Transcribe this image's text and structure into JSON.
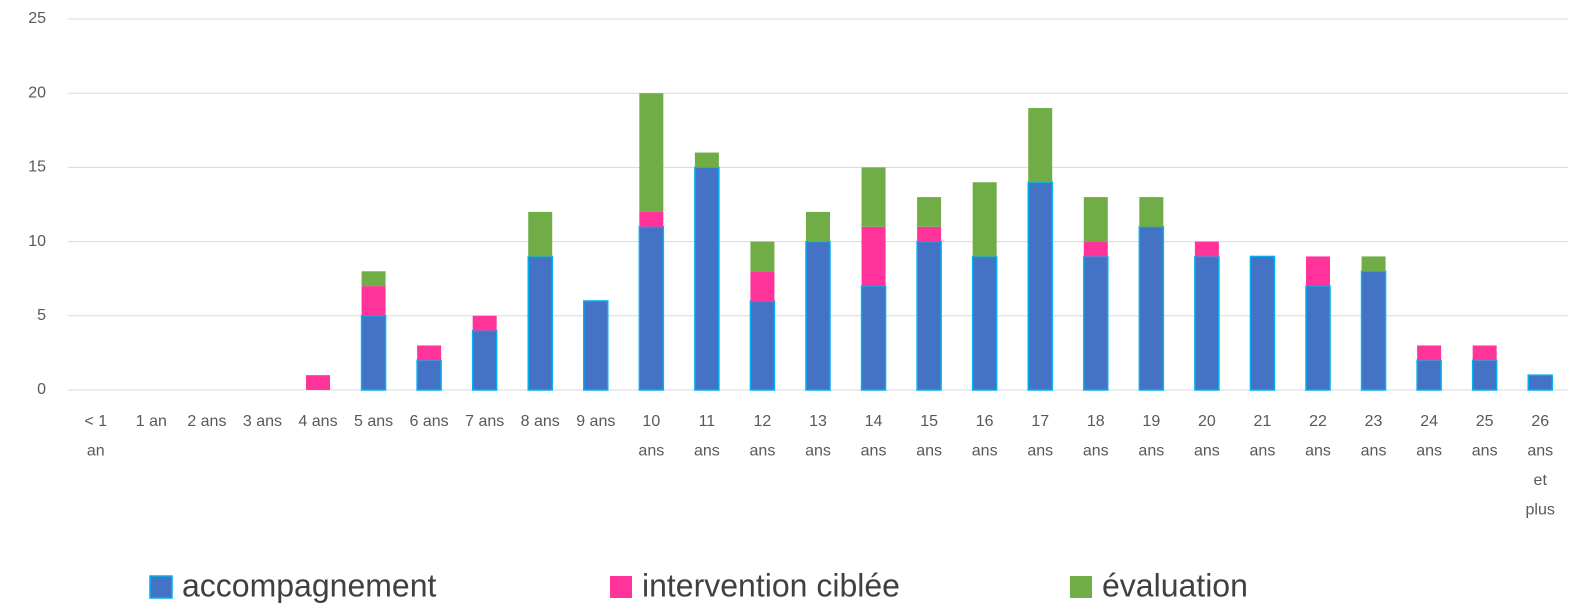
{
  "chart_data": {
    "type": "stacked_bar",
    "categories": [
      "< 1 an",
      "1 an",
      "2 ans",
      "3 ans",
      "4 ans",
      "5 ans",
      "6 ans",
      "7 ans",
      "8 ans",
      "9 ans",
      "10 ans",
      "11 ans",
      "12 ans",
      "13 ans",
      "14 ans",
      "15 ans",
      "16 ans",
      "17 ans",
      "18 ans",
      "19 ans",
      "20 ans",
      "21 ans",
      "22 ans",
      "23 ans",
      "24 ans",
      "25 ans",
      "26 ans et plus"
    ],
    "series": [
      {
        "name": "accompagnement",
        "color": "#4472c4",
        "values": [
          0,
          0,
          0,
          0,
          0,
          5,
          2,
          4,
          9,
          6,
          11,
          15,
          6,
          10,
          7,
          10,
          9,
          14,
          9,
          11,
          9,
          9,
          7,
          8,
          2,
          2,
          1
        ]
      },
      {
        "name": "intervention ciblée",
        "color": "#ff3399",
        "values": [
          0,
          0,
          0,
          0,
          1,
          2,
          1,
          1,
          0,
          0,
          1,
          0,
          2,
          0,
          4,
          1,
          0,
          0,
          1,
          0,
          1,
          0,
          2,
          0,
          1,
          1,
          0
        ]
      },
      {
        "name": "évaluation",
        "color": "#70ad47",
        "values": [
          0,
          0,
          0,
          0,
          0,
          1,
          0,
          0,
          3,
          0,
          8,
          1,
          2,
          2,
          4,
          2,
          5,
          5,
          3,
          2,
          0,
          0,
          0,
          1,
          0,
          0,
          0
        ]
      }
    ],
    "ylim": [
      0,
      25
    ],
    "yticks": [
      0,
      5,
      10,
      15,
      20,
      25
    ],
    "grid": true,
    "legend": "bottom"
  }
}
